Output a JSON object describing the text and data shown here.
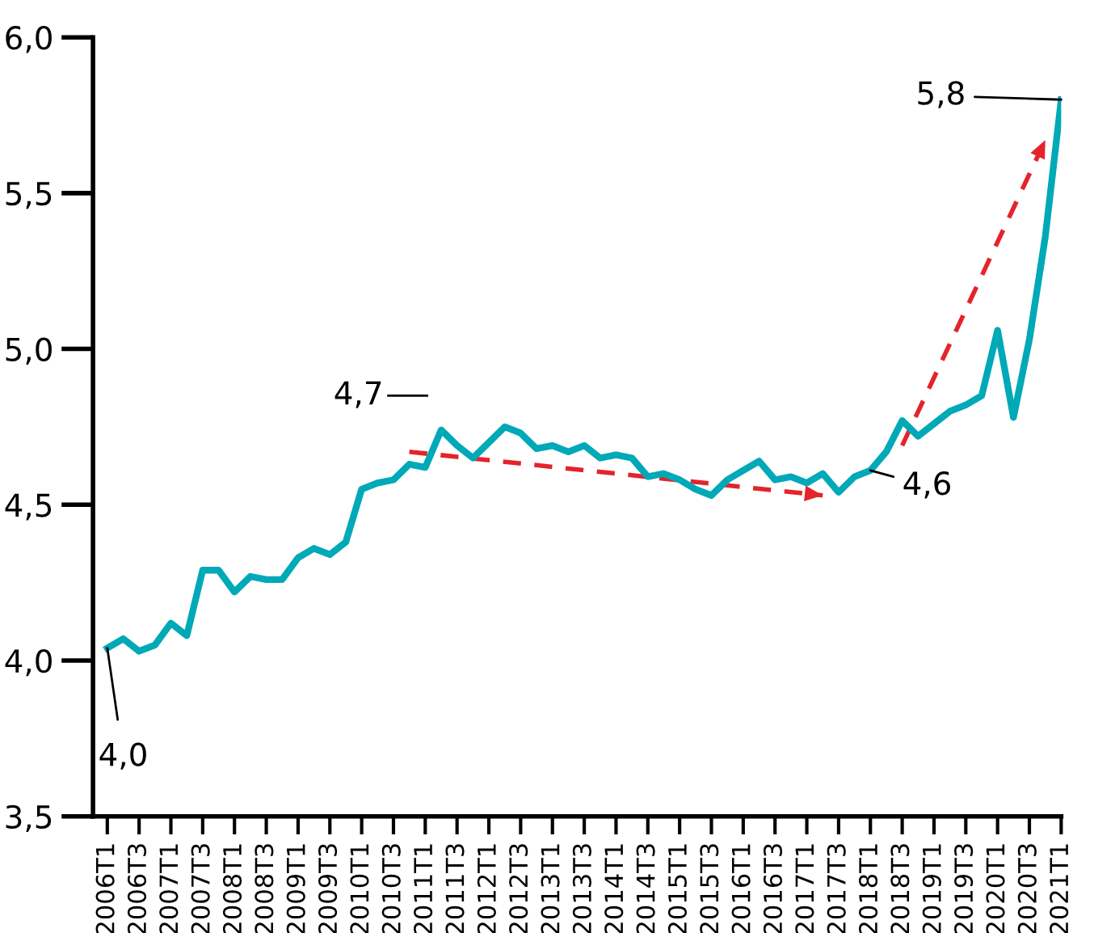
{
  "chart_data": {
    "type": "line",
    "categories": [
      "2006T1",
      null,
      "2006T3",
      null,
      "2007T1",
      null,
      "2007T3",
      null,
      "2008T1",
      null,
      "2008T3",
      null,
      "2009T1",
      null,
      "2009T3",
      null,
      "2010T1",
      null,
      "2010T3",
      null,
      "2011T1",
      null,
      "2011T3",
      null,
      "2012T1",
      null,
      "2012T3",
      null,
      "2013T1",
      null,
      "2013T3",
      null,
      "2014T1",
      null,
      "2014T3",
      null,
      "2015T1",
      null,
      "2015T3",
      null,
      "2016T1",
      null,
      "2016T3",
      null,
      "2017T1",
      null,
      "2017T3",
      null,
      "2018T1",
      null,
      "2018T3",
      null,
      "2019T1",
      null,
      "2019T3",
      null,
      "2020T1",
      null,
      "2020T3",
      null,
      "2021T1"
    ],
    "series": [
      {
        "color": "#00a9b7",
        "line_style": "solid",
        "values": [
          4.04,
          4.07,
          4.03,
          4.05,
          4.12,
          4.08,
          4.29,
          4.29,
          4.22,
          4.27,
          4.26,
          4.26,
          4.33,
          4.36,
          4.34,
          4.38,
          4.55,
          4.57,
          4.58,
          4.63,
          4.62,
          4.74,
          4.69,
          4.65,
          4.7,
          4.75,
          4.73,
          4.68,
          4.69,
          4.67,
          4.69,
          4.65,
          4.66,
          4.65,
          4.59,
          4.6,
          4.58,
          4.55,
          4.53,
          4.58,
          4.61,
          4.64,
          4.58,
          4.59,
          4.57,
          4.6,
          4.54,
          4.59,
          4.61,
          4.67,
          4.77,
          4.72,
          4.76,
          4.8,
          4.82,
          4.85,
          5.06,
          4.78,
          5.03,
          5.36,
          5.8
        ]
      },
      {
        "color": "#e3242b",
        "line_style": "dashed",
        "values": [
          null,
          null,
          null,
          null,
          null,
          null,
          null,
          null,
          null,
          null,
          null,
          null,
          null,
          null,
          null,
          null,
          null,
          null,
          null,
          4.67,
          null,
          null,
          null,
          null,
          null,
          null,
          null,
          null,
          null,
          null,
          null,
          null,
          null,
          null,
          null,
          null,
          null,
          null,
          null,
          null,
          null,
          null,
          null,
          null,
          null,
          4.53,
          null,
          null,
          null,
          null,
          null,
          null,
          null,
          null,
          null,
          null,
          null,
          null,
          null,
          null,
          null
        ]
      },
      {
        "color": "#e3242b",
        "line_style": "dashed",
        "values": [
          null,
          null,
          null,
          null,
          null,
          null,
          null,
          null,
          null,
          null,
          null,
          null,
          null,
          null,
          null,
          null,
          null,
          null,
          null,
          null,
          null,
          null,
          null,
          null,
          null,
          null,
          null,
          null,
          null,
          null,
          null,
          null,
          null,
          null,
          null,
          null,
          null,
          null,
          null,
          null,
          null,
          null,
          null,
          null,
          null,
          null,
          null,
          null,
          null,
          null,
          4.69,
          null,
          null,
          null,
          null,
          null,
          null,
          null,
          null,
          5.67,
          null
        ]
      }
    ],
    "ylim": [
      3.5,
      6.0
    ],
    "yticks": [
      {
        "value": 3.5,
        "label": "3,5"
      },
      {
        "value": 4.0,
        "label": "4,0"
      },
      {
        "value": 4.5,
        "label": "4,5"
      },
      {
        "value": 5.0,
        "label": "5,0"
      },
      {
        "value": 5.5,
        "label": "5,5"
      },
      {
        "value": 6.0,
        "label": "6,0"
      }
    ],
    "grid": false,
    "marker": "none",
    "annotations": [
      {
        "text": "4,0",
        "x": "2006T1",
        "y": 4.04
      },
      "4,7",
      {
        "text": "4,6",
        "x": "2018T1",
        "y": 4.61
      },
      {
        "text": "5,8",
        "x": "2021T1",
        "y": 5.8
      }
    ]
  }
}
